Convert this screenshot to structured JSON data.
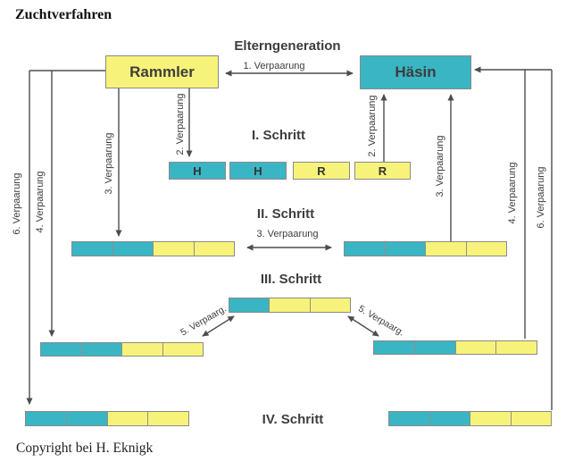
{
  "page": {
    "title": "Zuchtverfahren",
    "copyright": "Copyright bei H. Eknigk"
  },
  "diagram": {
    "generation_heading": "Elterngeneration",
    "parents": {
      "male": "Rammler",
      "female": "Häsin"
    },
    "steps": {
      "step1": "I. Schritt",
      "step2": "II. Schritt",
      "step3": "III. Schritt",
      "step4": "IV. Schritt"
    },
    "matings": {
      "m1": "1. Verpaarung",
      "m2": "2. Verpaarung",
      "m3": "3. Verpaarung",
      "m4": "4. Verpaarung",
      "m5": "5. Verpaarg.",
      "m6": "6. Verpaarung"
    },
    "step1_boxes": [
      {
        "label": "H",
        "color": "teal"
      },
      {
        "label": "H",
        "color": "teal"
      },
      {
        "label": "R",
        "color": "yellow"
      },
      {
        "label": "R",
        "color": "yellow"
      }
    ],
    "bars": {
      "step2_left": [
        "teal",
        "teal",
        "yellow",
        "yellow"
      ],
      "step2_right": [
        "teal",
        "teal",
        "yellow",
        "yellow"
      ],
      "step3_center": [
        "teal",
        "yellow",
        "yellow"
      ],
      "step3_left": [
        "teal",
        "teal",
        "yellow",
        "yellow"
      ],
      "step3_right": [
        "teal",
        "teal",
        "yellow",
        "yellow"
      ],
      "step4_left": [
        "teal",
        "teal",
        "yellow",
        "yellow"
      ],
      "step4_right": [
        "teal",
        "teal",
        "yellow",
        "yellow"
      ]
    },
    "colors": {
      "teal": "#3ab5c3",
      "yellow": "#f7f37a",
      "border_gray": "#8a8a8a",
      "line_gray": "#4d4d4d",
      "text_dark": "#3d3d3d"
    }
  }
}
